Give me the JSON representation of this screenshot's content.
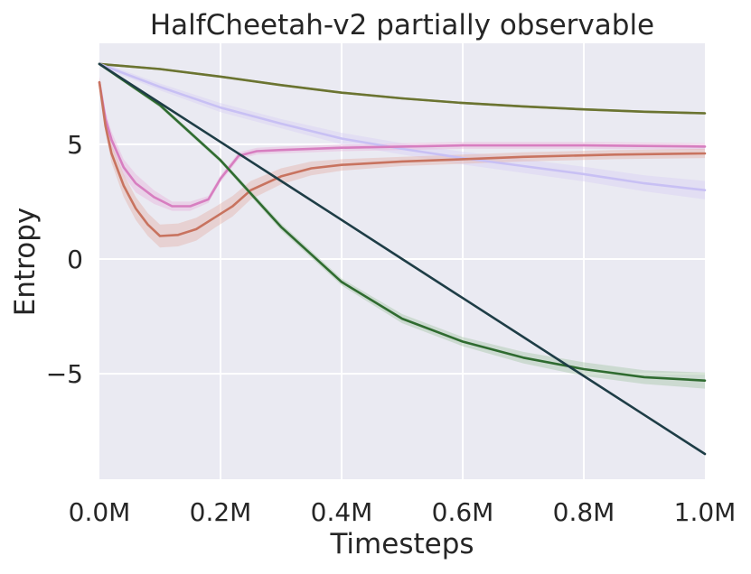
{
  "chart_data": {
    "type": "line",
    "title": "HalfCheetah-v2 partially observable",
    "xlabel": "Timesteps",
    "ylabel": "Entropy",
    "xlim": [
      0,
      1.0
    ],
    "ylim": [
      -9.6,
      9.4
    ],
    "x_ticks": [
      {
        "value": 0.0,
        "label": "0.0M"
      },
      {
        "value": 0.2,
        "label": "0.2M"
      },
      {
        "value": 0.4,
        "label": "0.4M"
      },
      {
        "value": 0.6,
        "label": "0.6M"
      },
      {
        "value": 0.8,
        "label": "0.8M"
      },
      {
        "value": 1.0,
        "label": "1.0M"
      }
    ],
    "y_ticks": [
      {
        "value": 5,
        "label": "5"
      },
      {
        "value": 0,
        "label": "0"
      },
      {
        "value": -5,
        "label": "−5"
      }
    ],
    "grid": true,
    "background": "#eaeaf2",
    "series": [
      {
        "name": "olive",
        "color": "#6b7431",
        "band": 0.05,
        "x": [
          0,
          0.1,
          0.2,
          0.3,
          0.4,
          0.5,
          0.6,
          0.7,
          0.8,
          0.9,
          1.0
        ],
        "y": [
          8.5,
          8.28,
          7.95,
          7.58,
          7.25,
          7.0,
          6.8,
          6.65,
          6.52,
          6.42,
          6.35
        ]
      },
      {
        "name": "lavender",
        "color": "#c8c0f4",
        "band_color": "#d9d0f4",
        "band": [
          0.1,
          0.15,
          0.2,
          0.2,
          0.25,
          0.25,
          0.28,
          0.3,
          0.32,
          0.35,
          0.4
        ],
        "x": [
          0,
          0.1,
          0.2,
          0.3,
          0.4,
          0.5,
          0.6,
          0.7,
          0.8,
          0.9,
          1.0
        ],
        "y": [
          8.5,
          7.5,
          6.6,
          5.9,
          5.25,
          4.8,
          4.4,
          4.05,
          3.7,
          3.3,
          3.0
        ]
      },
      {
        "name": "pink",
        "color": "#d77ec0",
        "band_color": "#e9b6dc",
        "band": [
          0.25,
          0.35,
          0.35,
          0.35,
          0.4,
          0.3,
          0.2,
          0.2,
          0.15,
          0.15,
          0.15,
          0.15,
          0.15,
          0.15,
          0.15,
          0.15,
          0.15,
          0.15,
          0.15
        ],
        "x": [
          0,
          0.01,
          0.02,
          0.04,
          0.06,
          0.09,
          0.12,
          0.15,
          0.18,
          0.2,
          0.23,
          0.26,
          0.3,
          0.35,
          0.4,
          0.5,
          0.6,
          0.8,
          1.0
        ],
        "y": [
          7.7,
          6.1,
          5.2,
          4.0,
          3.3,
          2.7,
          2.3,
          2.3,
          2.6,
          3.5,
          4.5,
          4.7,
          4.75,
          4.8,
          4.85,
          4.9,
          4.95,
          4.95,
          4.9
        ]
      },
      {
        "name": "terracotta",
        "color": "#c8735f",
        "band_color": "#e5b4aa",
        "band": [
          0.2,
          0.3,
          0.4,
          0.5,
          0.5,
          0.5,
          0.5,
          0.5,
          0.5,
          0.45,
          0.45,
          0.4,
          0.35,
          0.3,
          0.25,
          0.2,
          0.2,
          0.2,
          0.2,
          0.2
        ],
        "x": [
          0,
          0.01,
          0.02,
          0.04,
          0.06,
          0.08,
          0.1,
          0.13,
          0.16,
          0.19,
          0.22,
          0.25,
          0.3,
          0.35,
          0.4,
          0.5,
          0.6,
          0.7,
          0.85,
          1.0
        ],
        "y": [
          7.7,
          5.8,
          4.6,
          3.2,
          2.2,
          1.5,
          1.0,
          1.05,
          1.3,
          1.8,
          2.3,
          3.0,
          3.6,
          3.95,
          4.1,
          4.25,
          4.35,
          4.45,
          4.55,
          4.6
        ]
      },
      {
        "name": "dark-green",
        "color": "#2f6b30",
        "band_color": "#a8c7a8",
        "band": [
          0.05,
          0.1,
          0.1,
          0.15,
          0.15,
          0.2,
          0.2,
          0.25,
          0.3,
          0.3,
          0.35
        ],
        "x": [
          0,
          0.1,
          0.2,
          0.3,
          0.4,
          0.5,
          0.6,
          0.7,
          0.8,
          0.9,
          1.0
        ],
        "y": [
          8.5,
          6.7,
          4.3,
          1.4,
          -1.0,
          -2.6,
          -3.6,
          -4.3,
          -4.8,
          -5.15,
          -5.3
        ]
      },
      {
        "name": "dark-teal",
        "color": "#1e3d46",
        "band": 0,
        "x": [
          0,
          0.1,
          0.2,
          0.3,
          0.4,
          0.5,
          0.6,
          0.7,
          0.8,
          0.9,
          1.0
        ],
        "y": [
          8.5,
          6.8,
          5.1,
          3.4,
          1.7,
          0.0,
          -1.7,
          -3.4,
          -5.1,
          -6.8,
          -8.5
        ]
      }
    ]
  }
}
